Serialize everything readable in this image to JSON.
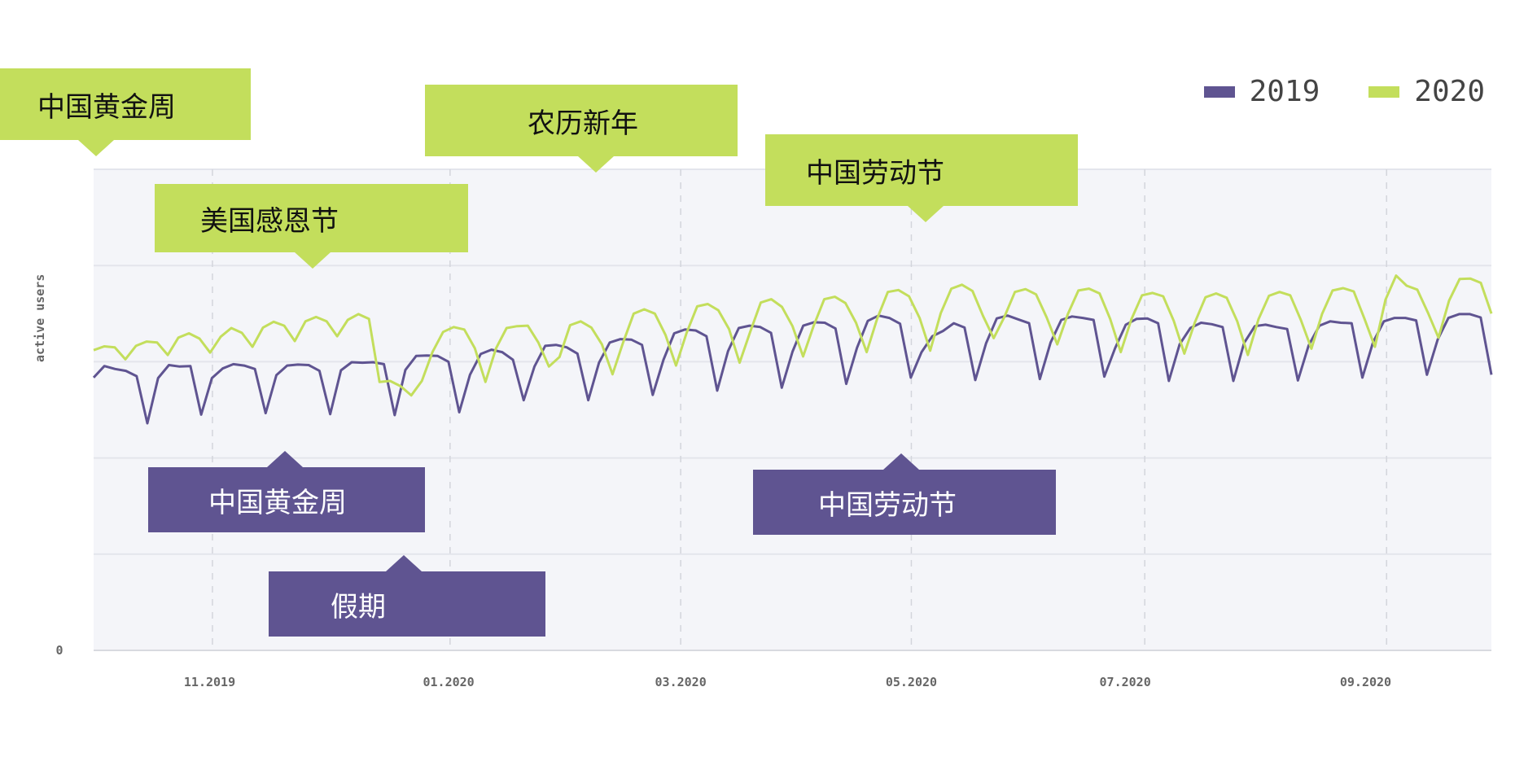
{
  "chart_data": {
    "type": "line",
    "ylabel": "active users",
    "y_tick_labels": [
      "0"
    ],
    "x_tick_labels": [
      "11.2019",
      "01.2020",
      "03.2020",
      "05.2020",
      "07.2020",
      "09.2020"
    ],
    "grid": true,
    "legend_placement": "top-right",
    "series": [
      {
        "name": "2019",
        "color": "#5f5491",
        "values": [
          0.567,
          0.591,
          0.585,
          0.581,
          0.57,
          0.472,
          0.566,
          0.593,
          0.59,
          0.591,
          0.49,
          0.566,
          0.586,
          0.595,
          0.592,
          0.585,
          0.493,
          0.572,
          0.592,
          0.594,
          0.593,
          0.581,
          0.491,
          0.582,
          0.599,
          0.598,
          0.599,
          0.595,
          0.489,
          0.583,
          0.612,
          0.613,
          0.612,
          0.6,
          0.495,
          0.573,
          0.616,
          0.625,
          0.62,
          0.604,
          0.52,
          0.59,
          0.633,
          0.635,
          0.63,
          0.617,
          0.52,
          0.598,
          0.64,
          0.647,
          0.646,
          0.635,
          0.531,
          0.604,
          0.659,
          0.667,
          0.665,
          0.653,
          0.54,
          0.622,
          0.67,
          0.675,
          0.672,
          0.66,
          0.546,
          0.621,
          0.675,
          0.682,
          0.681,
          0.669,
          0.554,
          0.629,
          0.685,
          0.696,
          0.691,
          0.679,
          0.567,
          0.62,
          0.653,
          0.664,
          0.68,
          0.671,
          0.562,
          0.638,
          0.69,
          0.696,
          0.688,
          0.68,
          0.564,
          0.64,
          0.687,
          0.694,
          0.691,
          0.687,
          0.569,
          0.628,
          0.677,
          0.689,
          0.69,
          0.68,
          0.56,
          0.636,
          0.67,
          0.681,
          0.678,
          0.672,
          0.56,
          0.639,
          0.674,
          0.677,
          0.672,
          0.668,
          0.561,
          0.634,
          0.675,
          0.684,
          0.681,
          0.68,
          0.567,
          0.641,
          0.684,
          0.691,
          0.691,
          0.686,
          0.573,
          0.646,
          0.691,
          0.699,
          0.699,
          0.692,
          0.573
        ]
      },
      {
        "name": "2020",
        "color": "#c3de5c",
        "values": [
          0.624,
          0.632,
          0.63,
          0.605,
          0.633,
          0.642,
          0.64,
          0.614,
          0.65,
          0.659,
          0.648,
          0.619,
          0.652,
          0.67,
          0.66,
          0.631,
          0.671,
          0.683,
          0.675,
          0.643,
          0.684,
          0.693,
          0.684,
          0.653,
          0.687,
          0.699,
          0.689,
          0.558,
          0.56,
          0.549,
          0.53,
          0.56,
          0.62,
          0.662,
          0.672,
          0.667,
          0.628,
          0.558,
          0.628,
          0.67,
          0.674,
          0.675,
          0.64,
          0.59,
          0.61,
          0.676,
          0.684,
          0.671,
          0.636,
          0.574,
          0.64,
          0.7,
          0.709,
          0.7,
          0.656,
          0.592,
          0.66,
          0.715,
          0.72,
          0.707,
          0.668,
          0.598,
          0.662,
          0.723,
          0.73,
          0.714,
          0.674,
          0.611,
          0.675,
          0.73,
          0.735,
          0.722,
          0.681,
          0.62,
          0.69,
          0.745,
          0.749,
          0.736,
          0.691,
          0.623,
          0.701,
          0.752,
          0.76,
          0.747,
          0.695,
          0.649,
          0.693,
          0.745,
          0.751,
          0.74,
          0.692,
          0.636,
          0.699,
          0.748,
          0.752,
          0.742,
          0.689,
          0.62,
          0.688,
          0.738,
          0.743,
          0.736,
          0.685,
          0.617,
          0.682,
          0.734,
          0.742,
          0.733,
          0.684,
          0.614,
          0.688,
          0.737,
          0.745,
          0.738,
          0.687,
          0.627,
          0.699,
          0.748,
          0.753,
          0.746,
          0.69,
          0.631,
          0.729,
          0.779,
          0.758,
          0.75,
          0.702,
          0.65,
          0.727,
          0.772,
          0.773,
          0.764,
          0.7
        ]
      }
    ]
  },
  "legend": {
    "items": [
      {
        "label": "2019",
        "color": "#5f5491"
      },
      {
        "label": "2020",
        "color": "#c3de5c"
      }
    ]
  },
  "annotations": {
    "green": [
      {
        "label": "中国黄金周"
      },
      {
        "label": "美国感恩节"
      },
      {
        "label": "农历新年"
      },
      {
        "label": "中国劳动节"
      }
    ],
    "purple": [
      {
        "label": "中国黄金周"
      },
      {
        "label": "假期"
      },
      {
        "label": "中国劳动节"
      }
    ]
  }
}
